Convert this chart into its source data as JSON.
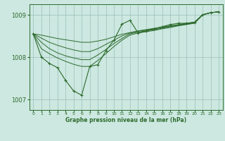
{
  "x": [
    0,
    1,
    2,
    3,
    4,
    5,
    6,
    7,
    8,
    9,
    10,
    11,
    12,
    13,
    14,
    15,
    16,
    17,
    18,
    19,
    20,
    21,
    22,
    23
  ],
  "jagged": [
    1008.55,
    1008.0,
    1007.85,
    1007.75,
    1007.45,
    1007.2,
    1007.1,
    1007.78,
    1007.82,
    1008.15,
    1008.4,
    1008.78,
    1008.87,
    1008.57,
    1008.62,
    1008.67,
    1008.72,
    1008.77,
    1008.8,
    1008.8,
    1008.82,
    1009.0,
    1009.05,
    1009.07
  ],
  "smooth1": [
    1008.55,
    1008.52,
    1008.48,
    1008.44,
    1008.41,
    1008.38,
    1008.35,
    1008.35,
    1008.38,
    1008.42,
    1008.48,
    1008.54,
    1008.58,
    1008.62,
    1008.65,
    1008.68,
    1008.71,
    1008.74,
    1008.77,
    1008.8,
    1008.83,
    1009.0,
    1009.05,
    1009.07
  ],
  "smooth2": [
    1008.55,
    1008.45,
    1008.35,
    1008.28,
    1008.22,
    1008.17,
    1008.13,
    1008.13,
    1008.2,
    1008.3,
    1008.4,
    1008.5,
    1008.57,
    1008.61,
    1008.64,
    1008.67,
    1008.7,
    1008.73,
    1008.76,
    1008.79,
    1008.82,
    1009.0,
    1009.05,
    1009.07
  ],
  "smooth3": [
    1008.55,
    1008.35,
    1008.2,
    1008.1,
    1008.03,
    1007.98,
    1007.94,
    1007.94,
    1008.05,
    1008.18,
    1008.32,
    1008.44,
    1008.55,
    1008.59,
    1008.62,
    1008.65,
    1008.68,
    1008.72,
    1008.75,
    1008.78,
    1008.81,
    1009.0,
    1009.05,
    1009.07
  ],
  "smooth4": [
    1008.55,
    1008.2,
    1008.08,
    1007.98,
    1007.9,
    1007.83,
    1007.78,
    1007.78,
    1007.92,
    1008.08,
    1008.25,
    1008.4,
    1008.52,
    1008.57,
    1008.6,
    1008.63,
    1008.67,
    1008.7,
    1008.74,
    1008.77,
    1008.8,
    1009.0,
    1009.05,
    1009.07
  ],
  "line_color": "#2d6a2d",
  "bg_color": "#cce8e0",
  "grid_color": "#9bbfb8",
  "xlabel": "Graphe pression niveau de la mer (hPa)",
  "ylim": [
    1006.75,
    1009.25
  ],
  "yticks": [
    1007,
    1008,
    1009
  ],
  "xticks": [
    0,
    1,
    2,
    3,
    4,
    5,
    6,
    7,
    8,
    9,
    10,
    11,
    12,
    13,
    14,
    15,
    16,
    17,
    18,
    19,
    20,
    21,
    22,
    23
  ]
}
